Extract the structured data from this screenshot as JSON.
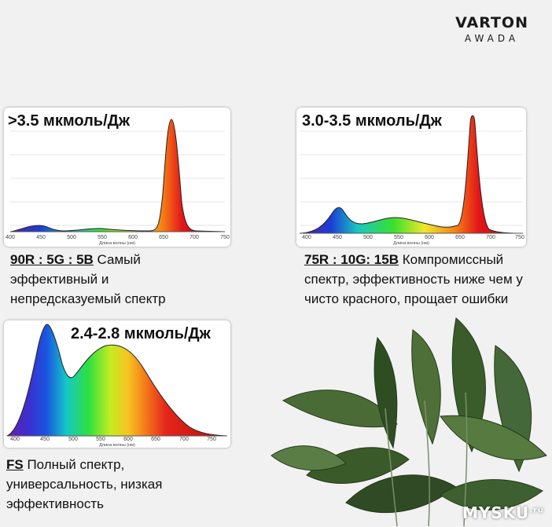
{
  "brand": {
    "line1": "VARTON",
    "line2": "AWADA"
  },
  "cards": [
    {
      "efficiency": ">3.5 мкмоль/Дж",
      "ratio": "90R : 5G : 5B",
      "description": " Самый эффективный и непредсказуемый спектр"
    },
    {
      "efficiency": "3.0-3.5 мкмоль/Дж",
      "ratio": "75R : 10G: 15B",
      "description": " Компромиссный спектр, эффективность ниже чем у чисто красного, прощает ошибки"
    },
    {
      "efficiency": "2.4-2.8 мкмоль/Дж",
      "ratio": "FS",
      "description": " Полный спектр, универсальность, низкая эффективность"
    }
  ],
  "axis": {
    "ticks": [
      "400",
      "450",
      "500",
      "550",
      "600",
      "650",
      "700",
      "750"
    ],
    "label": "Длина волны (нм)"
  },
  "watermark": {
    "text": "MYSKU",
    "suffix": ".ru"
  },
  "colors": {
    "background": "#f1f1f1",
    "text": "#111111"
  }
}
